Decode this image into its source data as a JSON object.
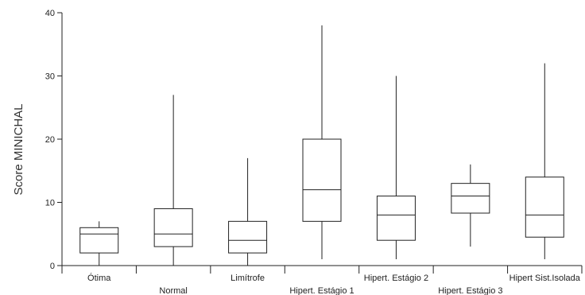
{
  "chart_data": {
    "type": "boxplot",
    "title": "",
    "xlabel": "",
    "ylabel": "Score MINICHAL",
    "ylim": [
      0,
      40
    ],
    "yticks": [
      0,
      10,
      20,
      30,
      40
    ],
    "grid": false,
    "legend": "none",
    "categories": [
      "Ótima",
      "Normal",
      "Limítrofe",
      "Hipert. Estágio 1",
      "Hipert. Estágio 2",
      "Hipert. Estágio 3",
      "Hipert Sist.Isolada"
    ],
    "boxes": [
      {
        "min": 0,
        "q1": 2,
        "median": 5,
        "q3": 6,
        "max": 7
      },
      {
        "min": 0,
        "q1": 3,
        "median": 5,
        "q3": 9,
        "max": 27
      },
      {
        "min": 0,
        "q1": 2,
        "median": 4,
        "q3": 7,
        "max": 17
      },
      {
        "min": 1,
        "q1": 7,
        "median": 12,
        "q3": 20,
        "max": 38
      },
      {
        "min": 1,
        "q1": 4,
        "median": 8,
        "q3": 11,
        "max": 30
      },
      {
        "min": 3,
        "q1": 8.3,
        "median": 11,
        "q3": 13,
        "max": 16
      },
      {
        "min": 1,
        "q1": 4.5,
        "median": 8,
        "q3": 14,
        "max": 32
      }
    ],
    "colors": {
      "box_fill": "#ffffff",
      "stroke": "#222222"
    }
  }
}
